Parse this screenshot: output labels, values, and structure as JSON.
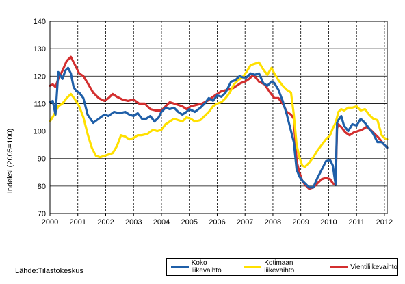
{
  "chart_data": {
    "type": "line",
    "title": "",
    "xlabel": "",
    "ylabel": "Indeksi (2005=100)",
    "ylim": [
      70,
      140
    ],
    "yticks": [
      "70",
      "80",
      "90",
      "100",
      "110",
      "120",
      "130",
      "140"
    ],
    "xticks": [
      "2000",
      "2001",
      "2002",
      "2003",
      "2004",
      "2005",
      "2006",
      "2007",
      "2008",
      "2009",
      "2010",
      "2011",
      "2012"
    ],
    "grid": "vertical dashed at years, horizontal solid",
    "legend_position": "bottom-right",
    "series": [
      {
        "name": "Koko liikevaihto",
        "color": "#1f5fa8",
        "x": [
          2000.0,
          2000.1,
          2000.2,
          2000.3,
          2000.45,
          2000.55,
          2000.65,
          2000.75,
          2000.85,
          2000.95,
          2001.05,
          2001.2,
          2001.35,
          2001.55,
          2001.75,
          2001.95,
          2002.1,
          2002.3,
          2002.5,
          2002.7,
          2002.85,
          2003.0,
          2003.15,
          2003.3,
          2003.45,
          2003.6,
          2003.75,
          2003.9,
          2004.0,
          2004.15,
          2004.3,
          2004.45,
          2004.6,
          2004.75,
          2004.9,
          2005.0,
          2005.2,
          2005.4,
          2005.55,
          2005.7,
          2005.85,
          2006.0,
          2006.15,
          2006.3,
          2006.5,
          2006.65,
          2006.8,
          2006.95,
          2007.05,
          2007.2,
          2007.35,
          2007.5,
          2007.65,
          2007.8,
          2007.95,
          2008.05,
          2008.2,
          2008.35,
          2008.5,
          2008.65,
          2008.75,
          2008.85,
          2008.95,
          2009.05,
          2009.15,
          2009.3,
          2009.45,
          2009.6,
          2009.75,
          2009.9,
          2010.05,
          2010.15,
          2010.25,
          2010.3,
          2010.35,
          2010.45,
          2010.55,
          2010.7,
          2010.85,
          2011.0,
          2011.15,
          2011.3,
          2011.45,
          2011.6,
          2011.75,
          2011.9,
          2012.0,
          2012.1
        ],
        "values": [
          110.5,
          111,
          106,
          121.5,
          119,
          122,
          123,
          121,
          116,
          114.5,
          114,
          112,
          106,
          103,
          104.5,
          106,
          105.5,
          107,
          106.5,
          107,
          106,
          105.5,
          106.5,
          104.5,
          104.5,
          105.5,
          103.5,
          105,
          107,
          108.5,
          108,
          108.5,
          107,
          106,
          107,
          108,
          107,
          108.5,
          110,
          112,
          111,
          113,
          112.5,
          114,
          118,
          118.5,
          120,
          119.5,
          119.5,
          121,
          120.5,
          121,
          117.5,
          116.5,
          118,
          117.5,
          115,
          111,
          106,
          100,
          96,
          86,
          83.5,
          82,
          81,
          79.5,
          79.5,
          83,
          86,
          89,
          89.5,
          87.5,
          80.5,
          103,
          104,
          105.5,
          102,
          100,
          102.5,
          102,
          104.5,
          103,
          101,
          99,
          96,
          96,
          95,
          94
        ]
      },
      {
        "name": "Kotimaan liikevaihto",
        "color": "#ffe000",
        "x": [
          2000.0,
          2000.15,
          2000.3,
          2000.45,
          2000.6,
          2000.75,
          2000.9,
          2001.05,
          2001.2,
          2001.35,
          2001.5,
          2001.65,
          2001.8,
          2001.95,
          2002.1,
          2002.25,
          2002.4,
          2002.55,
          2002.7,
          2002.85,
          2003.0,
          2003.15,
          2003.3,
          2003.5,
          2003.7,
          2003.85,
          2004.0,
          2004.15,
          2004.3,
          2004.45,
          2004.6,
          2004.75,
          2004.9,
          2005.05,
          2005.2,
          2005.4,
          2005.55,
          2005.7,
          2005.85,
          2006.0,
          2006.15,
          2006.3,
          2006.45,
          2006.6,
          2006.75,
          2006.9,
          2007.05,
          2007.2,
          2007.35,
          2007.5,
          2007.65,
          2007.8,
          2007.95,
          2008.05,
          2008.2,
          2008.35,
          2008.5,
          2008.65,
          2008.75,
          2008.85,
          2008.95,
          2009.05,
          2009.15,
          2009.3,
          2009.45,
          2009.6,
          2009.75,
          2009.9,
          2010.05,
          2010.15,
          2010.25,
          2010.35,
          2010.45,
          2010.55,
          2010.7,
          2010.85,
          2011.0,
          2011.15,
          2011.3,
          2011.45,
          2011.6,
          2011.75,
          2011.9,
          2012.0,
          2012.1
        ],
        "values": [
          103.5,
          106,
          109,
          110,
          112,
          113.5,
          111.5,
          109,
          105,
          99,
          94,
          91,
          90.5,
          91,
          91.5,
          92,
          94.5,
          98.5,
          98,
          97,
          97.5,
          98.5,
          98.5,
          99,
          100.5,
          100,
          100.5,
          102.5,
          103.5,
          104.5,
          104,
          103.5,
          105,
          104.5,
          103.5,
          104,
          105.5,
          107,
          109,
          110,
          110.5,
          112,
          114,
          117,
          118.5,
          119.5,
          121.5,
          124,
          124.5,
          125,
          122.5,
          120.5,
          123,
          121,
          118.5,
          116.5,
          115,
          114,
          106,
          95,
          90.5,
          87.5,
          87,
          88.5,
          90.5,
          93,
          95,
          97,
          98.5,
          101,
          103,
          107,
          108,
          107.5,
          108.5,
          108.5,
          109,
          107.5,
          108,
          106,
          104.5,
          104,
          98.5,
          97.5,
          97
        ]
      },
      {
        "name": "Vientiliikevaihto",
        "color": "#d32f2f",
        "x": [
          2000.0,
          2000.1,
          2000.2,
          2000.3,
          2000.45,
          2000.6,
          2000.75,
          2000.9,
          2001.05,
          2001.2,
          2001.35,
          2001.55,
          2001.75,
          2001.95,
          2002.1,
          2002.25,
          2002.4,
          2002.6,
          2002.8,
          2003.0,
          2003.2,
          2003.4,
          2003.6,
          2003.8,
          2004.0,
          2004.15,
          2004.3,
          2004.45,
          2004.6,
          2004.75,
          2004.9,
          2005.05,
          2005.25,
          2005.45,
          2005.65,
          2005.85,
          2006.0,
          2006.15,
          2006.35,
          2006.55,
          2006.7,
          2006.85,
          2007.0,
          2007.15,
          2007.3,
          2007.5,
          2007.7,
          2007.9,
          2008.05,
          2008.2,
          2008.35,
          2008.5,
          2008.65,
          2008.75,
          2008.85,
          2008.95,
          2009.05,
          2009.15,
          2009.3,
          2009.45,
          2009.6,
          2009.75,
          2009.9,
          2010.05,
          2010.15,
          2010.25,
          2010.3,
          2010.35,
          2010.45,
          2010.6,
          2010.75,
          2010.9,
          2011.05,
          2011.2,
          2011.35,
          2011.5,
          2011.65,
          2011.8,
          2011.95,
          2012.05,
          2012.1
        ],
        "values": [
          116.5,
          117,
          116,
          119,
          122,
          125.5,
          127,
          124,
          121,
          120,
          117.5,
          114,
          112,
          111,
          112,
          113.5,
          112.5,
          111.5,
          111,
          111.5,
          110,
          110,
          108,
          107.5,
          107.5,
          109,
          110.5,
          110,
          109.5,
          109,
          108,
          109,
          109.5,
          110,
          111,
          112.5,
          113.5,
          114.5,
          115,
          115.5,
          116.5,
          117.5,
          118,
          119,
          120.5,
          118,
          117,
          114,
          112,
          112,
          110,
          107,
          106,
          104.5,
          89,
          85,
          82,
          80.5,
          79,
          79.5,
          81,
          82.5,
          83,
          82.5,
          81,
          80.5,
          101,
          102.5,
          101.5,
          99.5,
          98.5,
          99.5,
          100,
          100.5,
          101.5,
          100.5,
          99,
          97.5,
          95.5,
          94.5,
          94
        ]
      }
    ]
  },
  "source_text": "Lähde:Tilastokeskus"
}
